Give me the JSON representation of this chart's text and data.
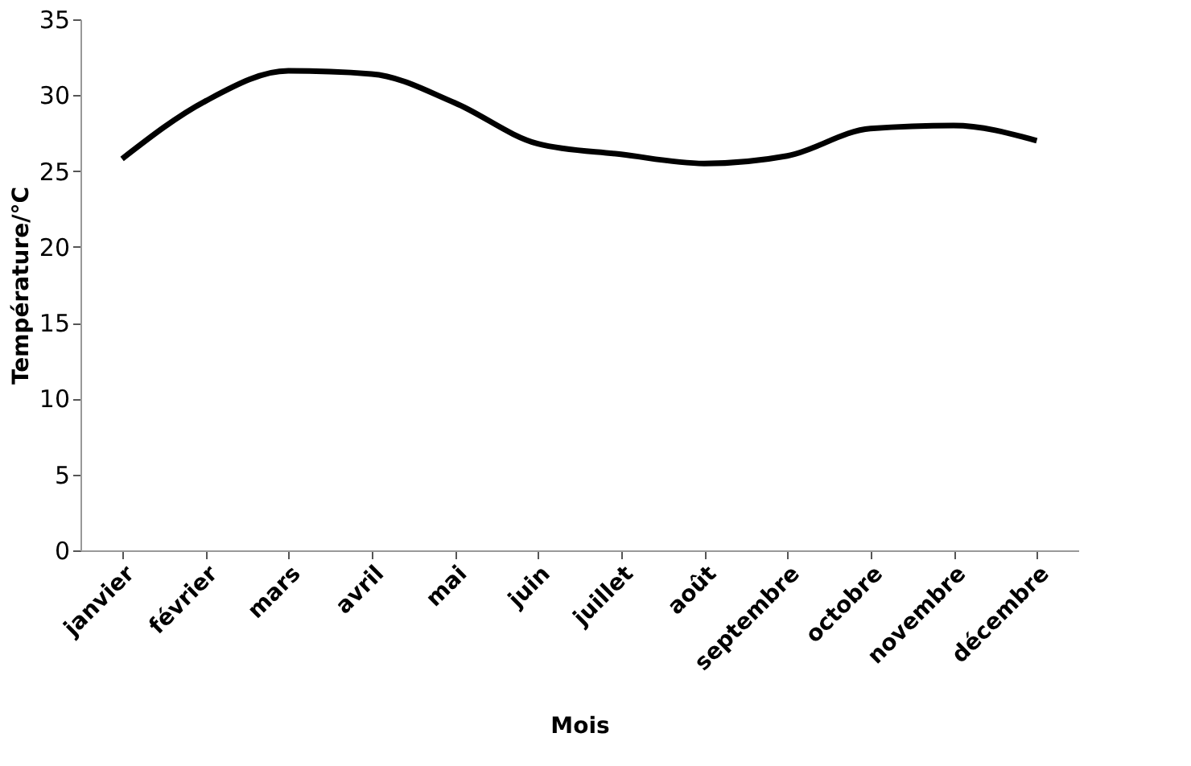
{
  "chart_data": {
    "type": "line",
    "xlabel": "Mois",
    "ylabel": "Température/°C",
    "categories": [
      "janvier",
      "février",
      "mars",
      "avril",
      "mai",
      "juin",
      "juillet",
      "août",
      "septembre",
      "octobre",
      "novembre",
      "décembre"
    ],
    "series": [
      {
        "color": "#000000",
        "values": [
          25.8,
          29.6,
          31.6,
          31.4,
          29.5,
          26.8,
          26.1,
          25.5,
          26.0,
          27.8,
          28.0,
          27.0
        ]
      }
    ],
    "ylim": [
      0,
      35
    ],
    "yticks": [
      0,
      5,
      10,
      15,
      20,
      25,
      30,
      35
    ],
    "grid": false,
    "legend": false,
    "marker": "none",
    "line_style": "solid"
  }
}
